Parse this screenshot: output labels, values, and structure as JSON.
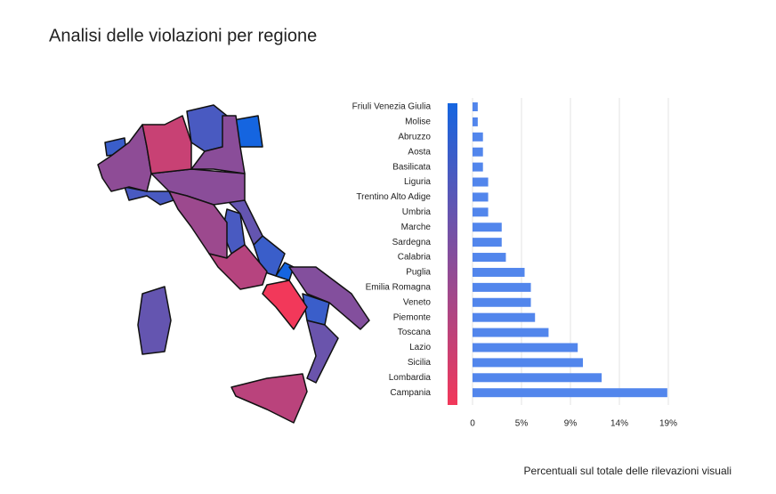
{
  "chart_data": {
    "type": "bar",
    "orientation": "horizontal",
    "title": "Analisi delle violazioni per regione",
    "footnote": "Percentuali sul totale delle rilevazioni visuali",
    "categories": [
      "Friuli Venezia Giulia",
      "Molise",
      "Abruzzo",
      "Aosta",
      "Basilicata",
      "Liguria",
      "Trentino Alto Adige",
      "Umbria",
      "Marche",
      "Sardegna",
      "Calabria",
      "Puglia",
      "Emilia Romagna",
      "Veneto",
      "Piemonte",
      "Toscana",
      "Lazio",
      "Sicilia",
      "Lombardia",
      "Campania"
    ],
    "values": [
      0.5,
      0.5,
      1.0,
      1.0,
      1.0,
      1.5,
      1.5,
      1.5,
      2.8,
      2.8,
      3.2,
      5.0,
      5.6,
      5.6,
      6.0,
      7.3,
      10.1,
      10.6,
      12.4,
      18.7
    ],
    "color": "#5286ec",
    "colorscale": [
      "#1565e0",
      "#f2385a"
    ],
    "xlim": [
      0,
      18.8
    ],
    "xticks": [
      0,
      {
        "value": 4.7,
        "label": "5%"
      },
      {
        "value": 9.4,
        "label": "9%"
      },
      {
        "value": 14.1,
        "label": "14%"
      },
      {
        "value": 18.8,
        "label": "19%"
      }
    ],
    "grid": true
  }
}
